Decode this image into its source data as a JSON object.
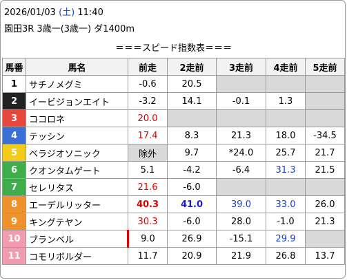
{
  "header": {
    "date": "2026/01/03",
    "weekday": "(土)",
    "time": "11:40",
    "race": "園田3R 3歳一(3歳一) ダ1400m",
    "weekday_color": "#1a3fd0"
  },
  "table": {
    "title": "＝＝＝スピード指数表＝＝＝",
    "columns": [
      "馬番",
      "馬名",
      "前走",
      "2走前",
      "3走前",
      "4走前",
      "5走前"
    ],
    "rows": [
      {
        "num": "1",
        "frame": "#ffffff",
        "num_color": "#000000",
        "name": "サチノメグミ",
        "cells": [
          {
            "text": "-0.6"
          },
          {
            "text": "20.5"
          },
          null,
          null,
          null
        ]
      },
      {
        "num": "2",
        "frame": "#222222",
        "num_color": "#ffffff",
        "name": "イービジョンエイト",
        "cells": [
          {
            "text": "-3.2"
          },
          {
            "text": "14.1"
          },
          {
            "text": "-0.1"
          },
          {
            "text": "1.3"
          },
          null
        ]
      },
      {
        "num": "3",
        "frame": "#e8473d",
        "num_color": "#ffffff",
        "name": "ココロネ",
        "cells": [
          {
            "text": "20.0",
            "color": "#e00000"
          },
          null,
          null,
          null,
          null
        ]
      },
      {
        "num": "4",
        "frame": "#3a6fd8",
        "num_color": "#ffffff",
        "name": "テッシン",
        "cells": [
          {
            "text": "17.4",
            "color": "#e00000"
          },
          {
            "text": "8.3"
          },
          {
            "text": "21.3"
          },
          {
            "text": "18.0"
          },
          {
            "text": "-34.5"
          }
        ]
      },
      {
        "num": "5",
        "frame": "#f2cc1d",
        "num_color": "#ffffff",
        "name": "ベラジオソニック",
        "cells": [
          {
            "text": "除外",
            "bg": "#d9d9d9"
          },
          {
            "text": "9.7"
          },
          {
            "text": "*24.0"
          },
          {
            "text": "25.7"
          },
          {
            "text": "21.7"
          }
        ]
      },
      {
        "num": "6",
        "frame": "#3fae4a",
        "num_color": "#ffffff",
        "name": "クオンタムゲート",
        "cells": [
          {
            "text": "5.1"
          },
          {
            "text": "-4.2"
          },
          {
            "text": "-6.4"
          },
          {
            "text": "31.3",
            "color": "#1a3fd0"
          },
          {
            "text": "21.5"
          }
        ]
      },
      {
        "num": "7",
        "frame": "#3fae4a",
        "num_color": "#ffffff",
        "name": "セレリタス",
        "cells": [
          {
            "text": "21.6",
            "color": "#e00000"
          },
          {
            "text": "-6.0"
          },
          null,
          null,
          null
        ]
      },
      {
        "num": "8",
        "frame": "#f0922b",
        "num_color": "#ffffff",
        "name": "エーデルリッター",
        "cells": [
          {
            "text": "40.3",
            "color": "#e00000",
            "bold": true
          },
          {
            "text": "41.0",
            "color": "#1a1ad0",
            "bold": true
          },
          {
            "text": "39.0",
            "color": "#1a3fd0"
          },
          {
            "text": "33.0",
            "color": "#1a3fd0"
          },
          {
            "text": "26.0"
          }
        ]
      },
      {
        "num": "9",
        "frame": "#f0922b",
        "num_color": "#ffffff",
        "name": "キングテヤン",
        "cells": [
          {
            "text": "30.3",
            "color": "#e00000"
          },
          {
            "text": "-6.0"
          },
          {
            "text": "28.0"
          },
          {
            "text": "-1.0"
          },
          {
            "text": "21.3"
          }
        ]
      },
      {
        "num": "10",
        "frame": "#f29ab0",
        "num_color": "#ffffff",
        "name": "ブランベル",
        "cells": [
          {
            "text": "9.0",
            "border_left": "#e00000"
          },
          {
            "text": "26.9"
          },
          {
            "text": "-15.1"
          },
          {
            "text": "29.9",
            "color": "#1a3fd0"
          },
          null
        ]
      },
      {
        "num": "11",
        "frame": "#f29ab0",
        "num_color": "#ffffff",
        "name": "コモリボルダー",
        "cells": [
          {
            "text": "11.7"
          },
          {
            "text": "20.9"
          },
          {
            "text": "21.9"
          },
          {
            "text": "26.8"
          },
          {
            "text": "13.7"
          }
        ]
      }
    ]
  }
}
